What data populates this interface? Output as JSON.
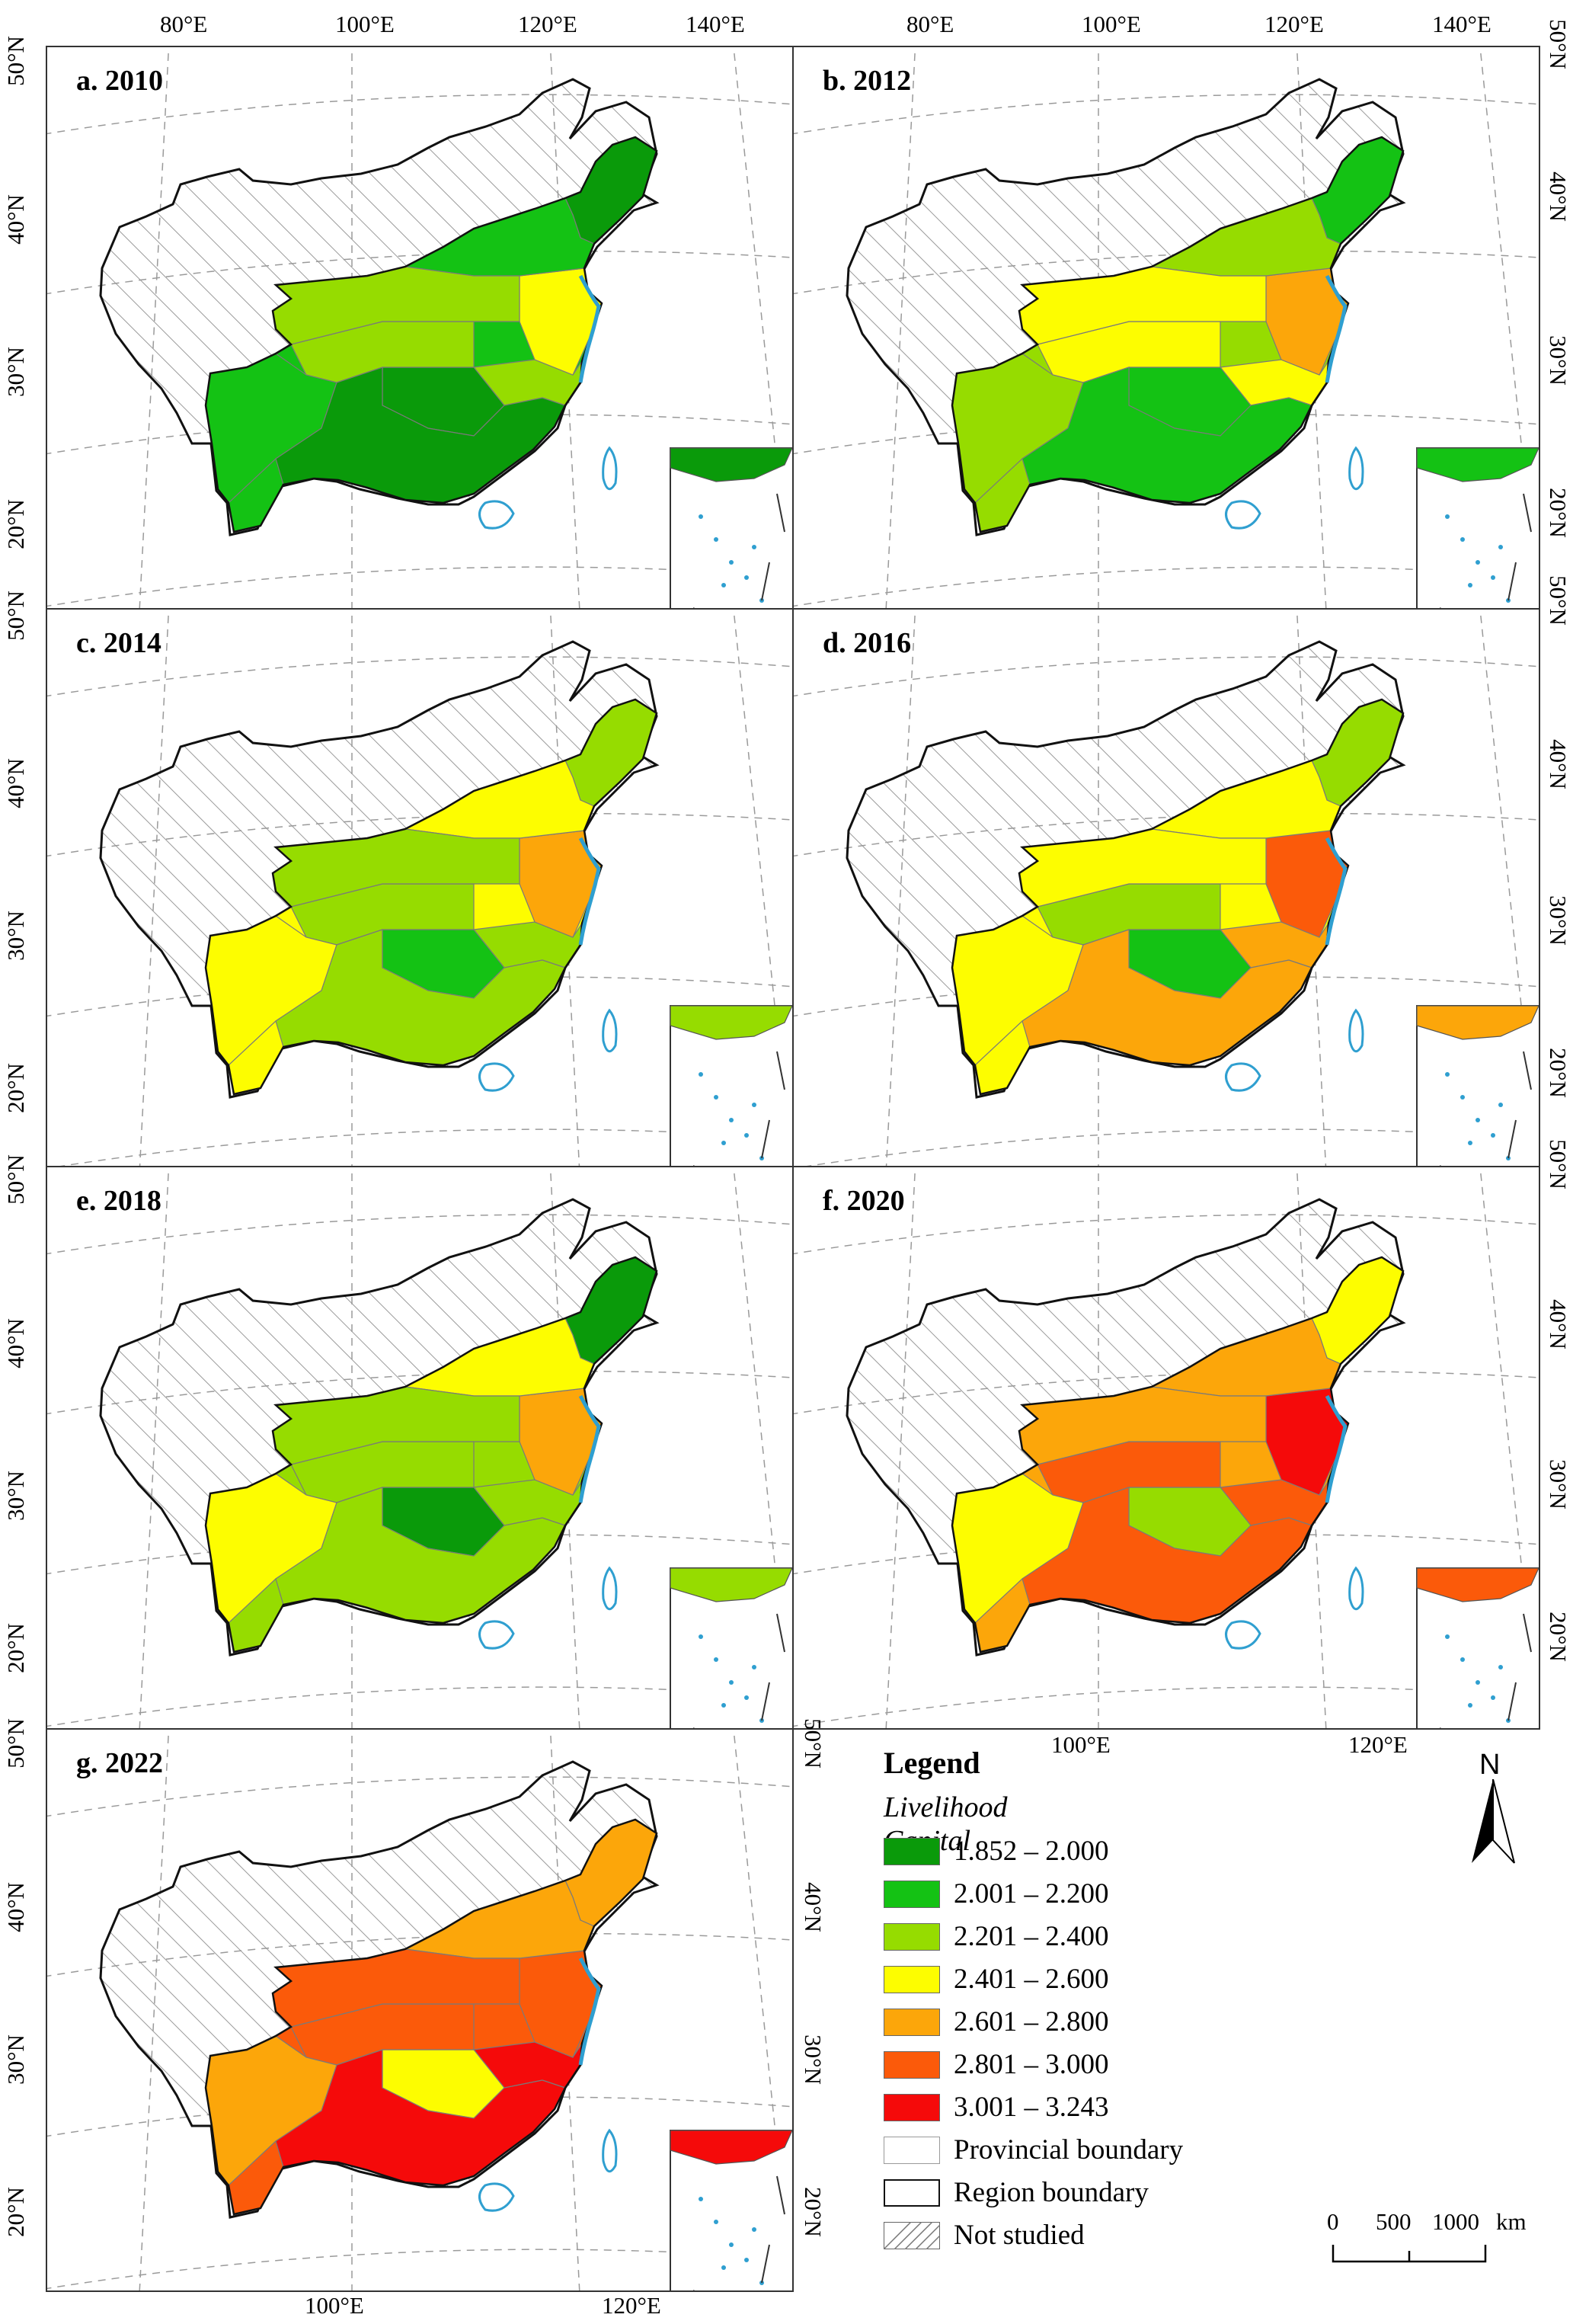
{
  "colors": {
    "c1": "#0a9a0a",
    "c2": "#14c214",
    "c3": "#96dc00",
    "c4": "#fdfd00",
    "c5": "#fca60a",
    "c6": "#fb5a0a",
    "c7": "#f50a0a",
    "sea": "#2f9fd0",
    "grid": "#9a9a9a"
  },
  "panels": [
    {
      "id": "a",
      "title": "a. 2010",
      "scheme": [
        "c2",
        "c1",
        "c3",
        "c4",
        "c2",
        "c1",
        "c3",
        "c2",
        "c1",
        "c3"
      ]
    },
    {
      "id": "b",
      "title": "b. 2012",
      "scheme": [
        "c3",
        "c2",
        "c4",
        "c5",
        "c3",
        "c2",
        "c4",
        "c3",
        "c2",
        "c4"
      ]
    },
    {
      "id": "c",
      "title": "c. 2014",
      "scheme": [
        "c4",
        "c3",
        "c3",
        "c5",
        "c4",
        "c2",
        "c3",
        "c4",
        "c3",
        "c3"
      ]
    },
    {
      "id": "d",
      "title": "d. 2016",
      "scheme": [
        "c4",
        "c3",
        "c5",
        "c6",
        "c4",
        "c2",
        "c3",
        "c4",
        "c5",
        "c4"
      ]
    },
    {
      "id": "e",
      "title": "e. 2018",
      "scheme": [
        "c3",
        "c1",
        "c3",
        "c5",
        "c4",
        "c1",
        "c3",
        "c4",
        "c3",
        "c3"
      ]
    },
    {
      "id": "f",
      "title": "f. 2020",
      "scheme": [
        "c5",
        "c4",
        "c6",
        "c7",
        "c5",
        "c3",
        "c6",
        "c4",
        "c6",
        "c5"
      ]
    },
    {
      "id": "g",
      "title": "g. 2022",
      "scheme": [
        "c6",
        "c5",
        "c7",
        "c6",
        "c5",
        "c4",
        "c6",
        "c5",
        "c7",
        "c6"
      ]
    }
  ],
  "axes": {
    "top_lon": [
      "80°E",
      "100°E",
      "120°E",
      "140°E"
    ],
    "bottom_lon": [
      "100°E",
      "120°E"
    ],
    "lat": [
      "50°N",
      "40°N",
      "30°N",
      "20°N"
    ]
  },
  "legend": {
    "title": "Legend",
    "subtitle": "Livelihood Capital",
    "classes": [
      {
        "label": "1.852 – 2.000",
        "color": "#0a9a0a"
      },
      {
        "label": "2.001 – 2.200",
        "color": "#14c214"
      },
      {
        "label": "2.201 – 2.400",
        "color": "#96dc00"
      },
      {
        "label": "2.401 – 2.600",
        "color": "#fdfd00"
      },
      {
        "label": "2.601 – 2.800",
        "color": "#fca60a"
      },
      {
        "label": "2.801 – 3.000",
        "color": "#fb5a0a"
      },
      {
        "label": "3.001 – 3.243",
        "color": "#f50a0a"
      }
    ],
    "provincial": "Provincial boundary",
    "region": "Region boundary",
    "not_studied": "Not studied"
  },
  "north_label": "N",
  "scale": {
    "labels": [
      "0",
      "500",
      "1000"
    ],
    "unit": "km"
  }
}
